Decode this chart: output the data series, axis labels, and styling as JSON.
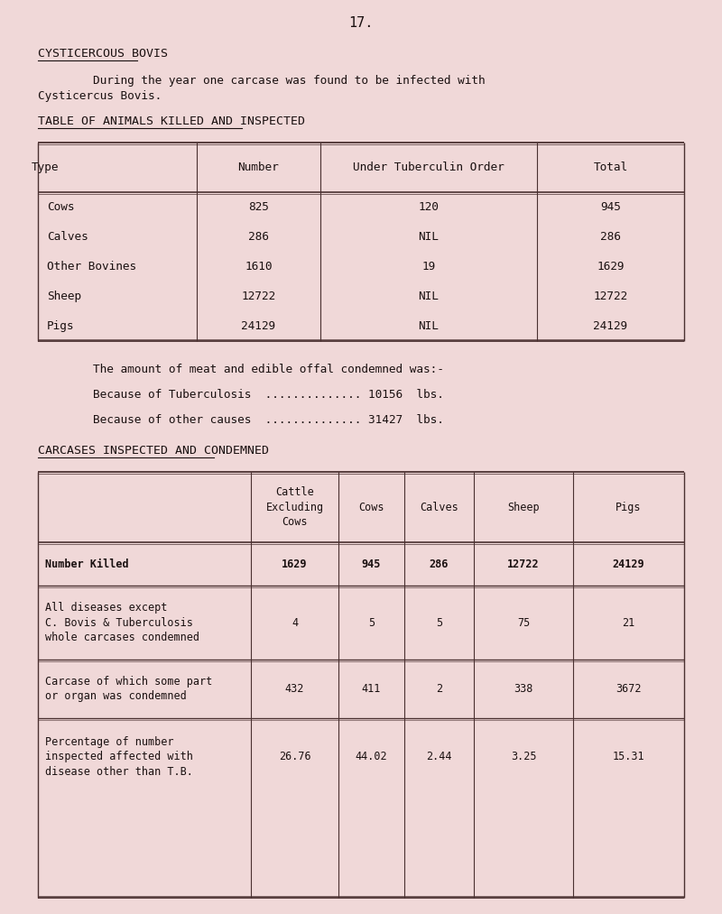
{
  "bg_color": "#f0d8d8",
  "text_color": "#1a1010",
  "page_number": "17.",
  "section_title": "CYSTICERCOUS BOVIS",
  "intro_line1": "        During the year one carcase was found to be infected with",
  "intro_line2": "Cysticercus Bovis.",
  "table1_title": "TABLE OF ANIMALS KILLED AND INSPECTED",
  "table1_headers": [
    "Type",
    "Number",
    "Under Tuberculin Order",
    "Total"
  ],
  "table1_rows": [
    [
      "Cows",
      "825",
      "120",
      "945"
    ],
    [
      "Calves",
      "286",
      "NIL",
      "286"
    ],
    [
      "Other Bovines",
      "1610",
      "19",
      "1629"
    ],
    [
      "Sheep",
      "12722",
      "NIL",
      "12722"
    ],
    [
      "Pigs",
      "24129",
      "NIL",
      "24129"
    ]
  ],
  "meat_text": "        The amount of meat and edible offal condemned was:-",
  "tb_line": "        Because of Tuberculosis  .............. 10156  lbs.",
  "other_line": "        Because of other causes  .............. 31427  lbs.",
  "table2_title": "CARCASES INSPECTED AND CONDEMNED",
  "table2_col_headers": [
    "Cattle\nExcluding\nCows",
    "Cows",
    "Calves",
    "Sheep",
    "Pigs"
  ],
  "table2_rows": [
    [
      "Number Killed",
      "1629",
      "945",
      "286",
      "12722",
      "24129"
    ],
    [
      "All diseases except\nC. Bovis & Tuberculosis\nwhole carcases condemned",
      "4",
      "5",
      "5",
      "75",
      "21"
    ],
    [
      "Carcase of which some part\nor organ was condemned",
      "432",
      "411",
      "2",
      "338",
      "3672"
    ],
    [
      "Percentage of number\ninspected affected with\ndisease other than T.B.",
      "26.76",
      "44.02",
      "2.44",
      "3.25",
      "15.31"
    ]
  ],
  "font_family": "monospace",
  "line_color": "#4a3030"
}
